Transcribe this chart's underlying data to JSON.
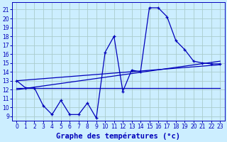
{
  "bg_color": "#cceeff",
  "line_color": "#0000bb",
  "grid_color": "#aacccc",
  "xlabel": "Graphe des températures (°c)",
  "xlabel_color": "#0000bb",
  "xlabel_fontsize": 7.5,
  "tick_color": "#0000bb",
  "ylim": [
    8.5,
    21.8
  ],
  "xlim": [
    -0.5,
    23.5
  ],
  "yticks": [
    9,
    10,
    11,
    12,
    13,
    14,
    15,
    16,
    17,
    18,
    19,
    20,
    21
  ],
  "xticks": [
    0,
    1,
    2,
    3,
    4,
    5,
    6,
    7,
    8,
    9,
    10,
    11,
    12,
    13,
    14,
    15,
    16,
    17,
    18,
    19,
    20,
    21,
    22,
    23
  ],
  "main_series": {
    "x": [
      0,
      1,
      2,
      3,
      4,
      5,
      6,
      7,
      8,
      9,
      10,
      11,
      12,
      13,
      14,
      15,
      16,
      17,
      18,
      19,
      20,
      21,
      22,
      23
    ],
    "y": [
      13.0,
      12.2,
      12.2,
      10.2,
      9.2,
      10.8,
      9.2,
      9.2,
      10.5,
      8.8,
      16.2,
      18.0,
      11.8,
      14.2,
      14.0,
      21.2,
      21.2,
      20.2,
      17.5,
      16.5,
      15.2,
      15.0,
      14.9,
      14.9
    ]
  },
  "trend_lines": [
    {
      "x": [
        0,
        23
      ],
      "y": [
        13.0,
        14.8
      ]
    },
    {
      "x": [
        0,
        23
      ],
      "y": [
        12.0,
        15.2
      ]
    },
    {
      "x": [
        0,
        23
      ],
      "y": [
        12.2,
        12.2
      ]
    }
  ]
}
